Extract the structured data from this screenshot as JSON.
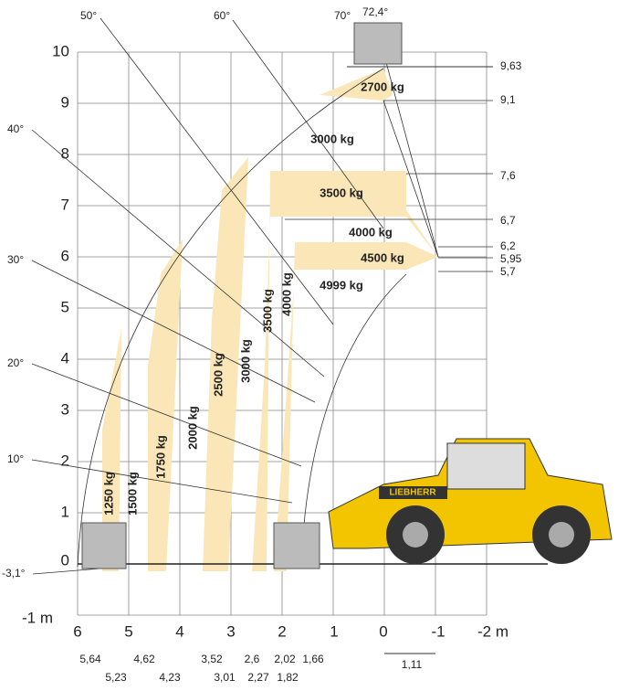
{
  "y_axis_labels": [
    "10",
    "9",
    "8",
    "7",
    "6",
    "5",
    "4",
    "3",
    "2",
    "1",
    "0",
    "-1 m"
  ],
  "x_axis_labels": [
    "6",
    "5",
    "4",
    "3",
    "2",
    "1",
    "0",
    "-1",
    "-2 m"
  ],
  "angle_labels": [
    "70°",
    "60°",
    "50°",
    "40°",
    "30°",
    "20°",
    "10°",
    "-3,1°",
    "72,4°"
  ],
  "height_labels": [
    "9,63",
    "9,1",
    "7,6",
    "6,7",
    "6,2",
    "5,95",
    "5,7"
  ],
  "reach_labels": [
    "5,64",
    "5,23",
    "4,62",
    "4,23",
    "3,52",
    "3,01",
    "2,6",
    "2,27",
    "2,02",
    "1,82",
    "1,66"
  ],
  "offset_label": "1,11",
  "load_labels": [
    "2700 kg",
    "3000 kg",
    "3500 kg",
    "4000 kg",
    "4500 kg",
    "4999 kg"
  ],
  "vertical_load_labels": [
    "1250 kg",
    "1500 kg",
    "1750 kg",
    "2000 kg",
    "2500 kg",
    "3000 kg",
    "3500 kg",
    "4000 kg"
  ],
  "brand": "LIEBHERR"
}
